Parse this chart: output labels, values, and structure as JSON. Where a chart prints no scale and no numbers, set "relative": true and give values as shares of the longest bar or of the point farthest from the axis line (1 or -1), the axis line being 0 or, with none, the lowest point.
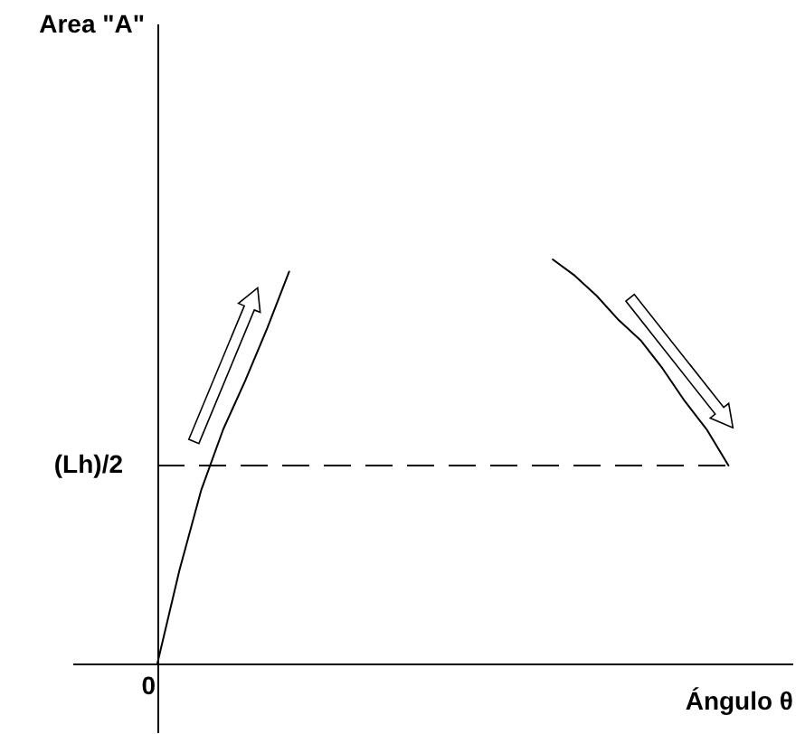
{
  "chart_data": {
    "type": "line",
    "xlabel": "Ángulo θ",
    "relative": true,
    "categories": [
      null,
      null,
      null,
      null,
      null,
      null,
      null,
      null,
      null,
      null,
      null,
      null,
      null,
      null,
      null,
      null,
      null,
      null,
      null,
      null,
      null,
      null,
      null,
      null,
      null,
      null,
      null,
      null,
      null
    ],
    "series": [
      {
        "color": "#000000",
        "values": [
          0,
          0.23,
          0.43,
          0.58,
          0.7,
          0.83,
          0.97,
          null,
          null,
          null,
          null,
          null,
          null,
          null,
          null,
          null,
          null,
          null,
          null,
          null,
          null,
          null,
          null,
          null,
          null,
          null,
          null,
          null,
          null
        ]
      },
      {
        "color": "#000000",
        "values": [
          null,
          null,
          null,
          null,
          null,
          null,
          null,
          null,
          null,
          null,
          null,
          null,
          null,
          null,
          null,
          null,
          null,
          null,
          1.0,
          0.96,
          0.91,
          0.85,
          0.8,
          0.73,
          0.65,
          0.58,
          0.49,
          null,
          null
        ]
      }
    ],
    "ref_lines": [
      {
        "axis": "y",
        "value": 0.49,
        "label": "(Lh)/2",
        "line_style": "dashed",
        "color": "#000000"
      }
    ],
    "annotations": [
      "Area \"A\"",
      {
        "text": "0",
        "y": 0
      }
    ],
    "marker": "none",
    "line_style": "solid"
  }
}
